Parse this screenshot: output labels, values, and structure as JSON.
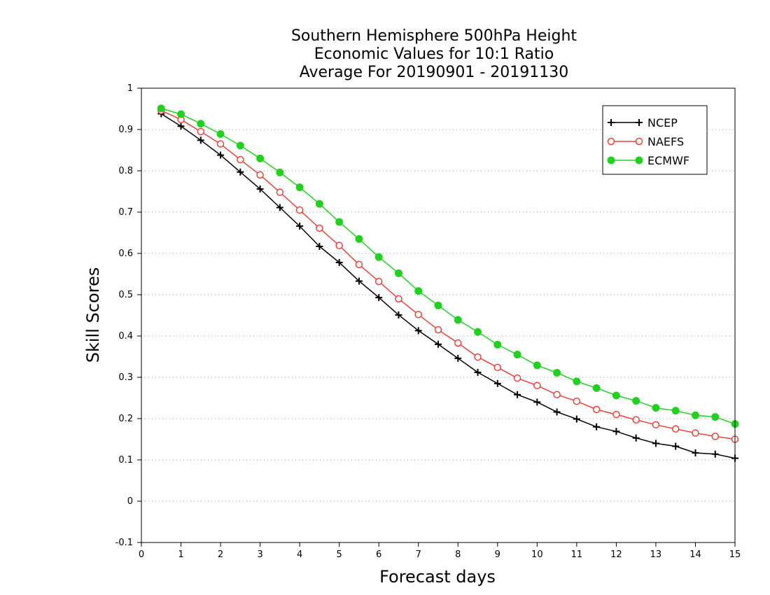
{
  "chart_data": {
    "type": "line",
    "title": [
      "Southern Hemisphere 500hPa Height",
      "Economic Values for 10:1 Ratio",
      "Average For 20190901 - 20191130"
    ],
    "xlabel": "Forecast days",
    "ylabel": "Skill Scores",
    "xlim": [
      0,
      15
    ],
    "ylim": [
      -0.1,
      1
    ],
    "x_ticks": [
      0,
      1,
      2,
      3,
      4,
      5,
      6,
      7,
      8,
      9,
      10,
      11,
      12,
      13,
      14,
      15
    ],
    "x_tick_labels": [
      "0",
      "1",
      "2",
      "3",
      "4",
      "5",
      "6",
      "7",
      "8",
      "9",
      "10",
      "11",
      "12",
      "13",
      "14",
      "15"
    ],
    "y_ticks": [
      -0.1,
      0,
      0.1,
      0.2,
      0.3,
      0.4,
      0.5,
      0.6,
      0.7,
      0.8,
      0.9,
      1
    ],
    "y_tick_labels": [
      "-0.1",
      "0",
      "0.1",
      "0.2",
      "0.3",
      "0.4",
      "0.5",
      "0.6",
      "0.7",
      "0.8",
      "0.9",
      "1"
    ],
    "grid": "horizontal dotted",
    "legend_position": "top-right",
    "x": [
      0.5,
      1,
      1.5,
      2,
      2.5,
      3,
      3.5,
      4,
      4.5,
      5,
      5.5,
      6,
      6.5,
      7,
      7.5,
      8,
      8.5,
      9,
      9.5,
      10,
      10.5,
      11,
      11.5,
      12,
      12.5,
      13,
      13.5,
      14,
      14.5,
      15
    ],
    "series": [
      {
        "name": "NCEP",
        "color": "#000000",
        "marker": "plus",
        "values": [
          0.938,
          0.908,
          0.874,
          0.838,
          0.797,
          0.756,
          0.711,
          0.666,
          0.617,
          0.578,
          0.533,
          0.493,
          0.451,
          0.413,
          0.38,
          0.346,
          0.312,
          0.285,
          0.258,
          0.24,
          0.216,
          0.199,
          0.18,
          0.169,
          0.153,
          0.14,
          0.133,
          0.117,
          0.114,
          0.104
        ]
      },
      {
        "name": "NAEFS",
        "color": "#e8413c",
        "marker": "open-circle",
        "values": [
          0.946,
          0.924,
          0.895,
          0.865,
          0.827,
          0.79,
          0.748,
          0.705,
          0.661,
          0.619,
          0.573,
          0.532,
          0.49,
          0.452,
          0.415,
          0.383,
          0.349,
          0.324,
          0.298,
          0.28,
          0.258,
          0.242,
          0.222,
          0.21,
          0.197,
          0.185,
          0.175,
          0.165,
          0.157,
          0.15
        ]
      },
      {
        "name": "ECMWF",
        "color": "#22d022",
        "marker": "filled-circle",
        "values": [
          0.951,
          0.937,
          0.914,
          0.889,
          0.861,
          0.83,
          0.796,
          0.76,
          0.72,
          0.676,
          0.635,
          0.591,
          0.552,
          0.509,
          0.474,
          0.439,
          0.41,
          0.379,
          0.355,
          0.329,
          0.311,
          0.29,
          0.274,
          0.256,
          0.243,
          0.226,
          0.219,
          0.208,
          0.204,
          0.187
        ]
      }
    ]
  }
}
